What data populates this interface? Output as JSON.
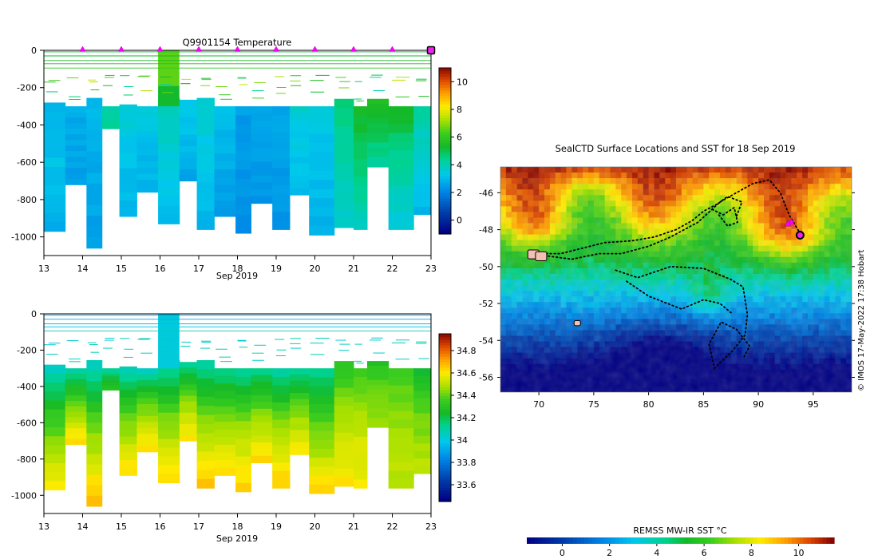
{
  "chart_data": [
    {
      "type": "heatmap",
      "panel": "temperature-section",
      "title": "Q9901154  Temperature",
      "xlabel": "Sep 2019",
      "x_ticks": [
        "13",
        "14",
        "15",
        "16",
        "17",
        "18",
        "19",
        "20",
        "21",
        "22",
        "23"
      ],
      "xlim": [
        13,
        23
      ],
      "ylim": [
        -1100,
        0
      ],
      "y_ticks": [
        0,
        -200,
        -400,
        -600,
        -800,
        -1000
      ],
      "y_tick_labels": [
        "0",
        "-200",
        "-400",
        "-600",
        "-800",
        "-1000"
      ],
      "surface_markers_day": [
        14,
        15,
        16,
        17,
        18,
        19,
        20,
        21,
        22
      ],
      "final_marker_day": 23,
      "profiles": [
        {
          "t0": 13.0,
          "t1": 13.55,
          "bottom": -970,
          "v": [
            3.0,
            3.1,
            2.7
          ]
        },
        {
          "t0": 13.55,
          "t1": 14.1,
          "bottom": -720,
          "v": [
            2.7,
            2.6,
            2.5
          ]
        },
        {
          "t0": 14.1,
          "t1": 14.5,
          "bottom": -1060,
          "v": [
            3.0,
            2.7,
            2.4
          ]
        },
        {
          "t0": 14.5,
          "t1": 14.95,
          "bottom": -420,
          "v": [
            4.0,
            4.2,
            4.2
          ]
        },
        {
          "t0": 14.95,
          "t1": 15.4,
          "bottom": -890,
          "v": [
            3.5,
            3.1,
            2.9
          ]
        },
        {
          "t0": 15.4,
          "t1": 15.95,
          "bottom": -760,
          "v": [
            3.4,
            3.0,
            2.8
          ]
        },
        {
          "t0": 15.95,
          "t1": 16.5,
          "bottom": -930,
          "v": [
            3.8,
            3.4,
            3.0
          ]
        },
        {
          "t0": 16.5,
          "t1": 16.95,
          "bottom": -700,
          "v": [
            3.3,
            3.0,
            2.6
          ]
        },
        {
          "t0": 16.95,
          "t1": 17.4,
          "bottom": -960,
          "v": [
            3.6,
            3.2,
            2.8
          ]
        },
        {
          "t0": 17.4,
          "t1": 17.95,
          "bottom": -890,
          "v": [
            3.1,
            2.7,
            2.5
          ]
        },
        {
          "t0": 17.95,
          "t1": 18.35,
          "bottom": -980,
          "v": [
            2.4,
            2.3,
            2.2
          ]
        },
        {
          "t0": 18.35,
          "t1": 18.9,
          "bottom": -820,
          "v": [
            2.5,
            2.4,
            2.3
          ]
        },
        {
          "t0": 18.9,
          "t1": 19.35,
          "bottom": -960,
          "v": [
            2.6,
            2.4,
            2.3
          ]
        },
        {
          "t0": 19.35,
          "t1": 19.85,
          "bottom": -775,
          "v": [
            3.5,
            3.2,
            3.0
          ]
        },
        {
          "t0": 19.85,
          "t1": 20.5,
          "bottom": -990,
          "v": [
            3.3,
            3.0,
            2.8
          ]
        },
        {
          "t0": 20.5,
          "t1": 21.0,
          "bottom": -950,
          "v": [
            4.6,
            4.0,
            3.5
          ]
        },
        {
          "t0": 21.0,
          "t1": 21.35,
          "bottom": -960,
          "v": [
            5.2,
            4.6,
            3.8
          ]
        },
        {
          "t0": 21.35,
          "t1": 21.9,
          "bottom": -625,
          "v": [
            5.6,
            4.8,
            4.2
          ]
        },
        {
          "t0": 21.9,
          "t1": 22.55,
          "bottom": -960,
          "v": [
            5.2,
            4.2,
            3.4
          ]
        },
        {
          "t0": 22.55,
          "t1": 23.05,
          "bottom": -880,
          "v": [
            4.2,
            3.4,
            2.9
          ]
        }
      ],
      "thermocline_tops": [
        -280,
        -300,
        -255,
        -300,
        -290,
        -300,
        -255,
        -265,
        -255,
        -300,
        -300,
        -300,
        -300,
        -300,
        -300,
        -260,
        -300,
        -260,
        -300,
        -300
      ],
      "surface_column": {
        "t0": 15.95,
        "t1": 16.5,
        "v": 6.5
      },
      "colorbar": {
        "min": -1,
        "max": 11,
        "ticks": [
          0,
          2,
          4,
          6,
          8,
          10
        ],
        "tick_labels": [
          "0",
          "2",
          "4",
          "6",
          "8",
          "10"
        ]
      }
    },
    {
      "type": "heatmap",
      "panel": "salinity-section",
      "title": "",
      "xlabel": "Sep 2019",
      "x_ticks": [
        "13",
        "14",
        "15",
        "16",
        "17",
        "18",
        "19",
        "20",
        "21",
        "22",
        "23"
      ],
      "xlim": [
        13,
        23
      ],
      "ylim": [
        -1100,
        0
      ],
      "y_ticks": [
        0,
        -200,
        -400,
        -600,
        -800,
        -1000
      ],
      "y_tick_labels": [
        "0",
        "-200",
        "-400",
        "-600",
        "-800",
        "-1000"
      ],
      "profiles": [
        {
          "top": 34.05,
          "mid": 34.35,
          "deep": 34.6
        },
        {
          "top": 34.1,
          "mid": 34.38,
          "deep": 34.62
        },
        {
          "top": 34.05,
          "mid": 34.4,
          "deep": 34.68
        },
        {
          "top": 34.1,
          "mid": 34.2,
          "deep": 34.3
        },
        {
          "top": 34.05,
          "mid": 34.38,
          "deep": 34.62
        },
        {
          "top": 34.05,
          "mid": 34.4,
          "deep": 34.62
        },
        {
          "top": 34.08,
          "mid": 34.4,
          "deep": 34.62
        },
        {
          "top": 34.1,
          "mid": 34.42,
          "deep": 34.6
        },
        {
          "top": 34.1,
          "mid": 34.42,
          "deep": 34.64
        },
        {
          "top": 34.12,
          "mid": 34.42,
          "deep": 34.62
        },
        {
          "top": 34.12,
          "mid": 34.44,
          "deep": 34.64
        },
        {
          "top": 34.12,
          "mid": 34.42,
          "deep": 34.62
        },
        {
          "top": 34.1,
          "mid": 34.42,
          "deep": 34.64
        },
        {
          "top": 34.1,
          "mid": 34.4,
          "deep": 34.6
        },
        {
          "top": 34.12,
          "mid": 34.38,
          "deep": 34.62
        },
        {
          "top": 34.3,
          "mid": 34.48,
          "deep": 34.6
        },
        {
          "top": 34.35,
          "mid": 34.5,
          "deep": 34.58
        },
        {
          "top": 34.28,
          "mid": 34.4,
          "deep": 34.45
        },
        {
          "top": 34.35,
          "mid": 34.45,
          "deep": 34.5
        },
        {
          "top": 34.22,
          "mid": 34.4,
          "deep": 34.5
        }
      ],
      "surface_column_value": 34.0,
      "colorbar": {
        "min": 33.45,
        "max": 34.95,
        "ticks": [
          33.6,
          33.8,
          34.0,
          34.2,
          34.4,
          34.6,
          34.8
        ],
        "tick_labels": [
          "33.6",
          "33.8",
          "34",
          "34.2",
          "34.4",
          "34.6",
          "34.8"
        ]
      }
    },
    {
      "type": "heatmap",
      "panel": "sst-map",
      "title": "SealCTD Surface Locations and SST for 18 Sep 2019",
      "xlim": [
        66.5,
        98.5
      ],
      "ylim": [
        -56.8,
        -44.6
      ],
      "x_ticks": [
        70,
        75,
        80,
        85,
        90,
        95
      ],
      "x_tick_labels": [
        "70",
        "75",
        "80",
        "85",
        "90",
        "95"
      ],
      "y_ticks": [
        -46,
        -48,
        -50,
        -52,
        -54,
        -56
      ],
      "y_tick_labels": [
        "-46",
        "-48",
        "-50",
        "-52",
        "-54",
        "-56"
      ],
      "sst_field_note": "warm in north (~10 C), cold in south (~0 C)",
      "track_paths": [
        [
          [
            70.3,
            -49.3
          ],
          [
            72.0,
            -49.3
          ],
          [
            74.0,
            -49.0
          ],
          [
            76.0,
            -48.7
          ],
          [
            78.5,
            -48.6
          ],
          [
            80.5,
            -48.4
          ],
          [
            82.5,
            -48.0
          ],
          [
            84.0,
            -47.5
          ],
          [
            85.0,
            -47.0
          ],
          [
            86.3,
            -46.6
          ],
          [
            87.2,
            -46.2
          ],
          [
            88.5,
            -46.5
          ],
          [
            88.0,
            -47.3
          ]
        ],
        [
          [
            70.5,
            -49.4
          ],
          [
            73.0,
            -49.6
          ],
          [
            75.5,
            -49.3
          ],
          [
            77.5,
            -49.3
          ],
          [
            80.0,
            -48.9
          ],
          [
            82.0,
            -48.4
          ],
          [
            84.5,
            -47.6
          ],
          [
            86.5,
            -46.5
          ],
          [
            88.0,
            -46.0
          ],
          [
            89.5,
            -45.5
          ],
          [
            91.0,
            -45.3
          ],
          [
            92.0,
            -46.0
          ],
          [
            92.8,
            -47.2
          ],
          [
            93.8,
            -48.2
          ]
        ],
        [
          [
            77.0,
            -50.2
          ],
          [
            79.0,
            -50.6
          ],
          [
            82.0,
            -50.0
          ],
          [
            85.0,
            -50.1
          ],
          [
            87.5,
            -50.7
          ],
          [
            88.6,
            -51.1
          ],
          [
            89.0,
            -52.6
          ],
          [
            88.8,
            -53.7
          ],
          [
            87.6,
            -54.6
          ],
          [
            86.0,
            -55.5
          ],
          [
            85.5,
            -54.2
          ],
          [
            86.6,
            -53.0
          ],
          [
            88.0,
            -53.4
          ],
          [
            89.2,
            -54.3
          ],
          [
            88.6,
            -55.0
          ]
        ],
        [
          [
            78.0,
            -50.8
          ],
          [
            80.0,
            -51.6
          ],
          [
            83.0,
            -52.3
          ],
          [
            85.0,
            -51.8
          ],
          [
            86.5,
            -52.0
          ],
          [
            87.5,
            -52.5
          ]
        ],
        [
          [
            85.8,
            -46.9
          ],
          [
            86.8,
            -47.2
          ],
          [
            87.8,
            -46.8
          ],
          [
            88.1,
            -47.6
          ],
          [
            87.2,
            -47.8
          ],
          [
            86.4,
            -47.2
          ]
        ]
      ],
      "seal_colonies": [
        [
          69.5,
          -49.4
        ],
        [
          70.2,
          -49.5
        ],
        [
          73.5,
          -53.1
        ]
      ],
      "surface_markers": [
        [
          93.0,
          -47.6
        ],
        [
          92.7,
          -47.7
        ]
      ],
      "current_location": [
        93.8,
        -48.3
      ]
    }
  ],
  "map_colorbar": {
    "label": "REMSS MW-IR SST °C",
    "min": -1.5,
    "max": 11.5,
    "ticks": [
      0,
      2,
      4,
      6,
      8,
      10
    ],
    "tick_labels": [
      "0",
      "2",
      "4",
      "6",
      "8",
      "10"
    ]
  },
  "credit": "© IMOS 17-May-2022 17:38 Hobart"
}
